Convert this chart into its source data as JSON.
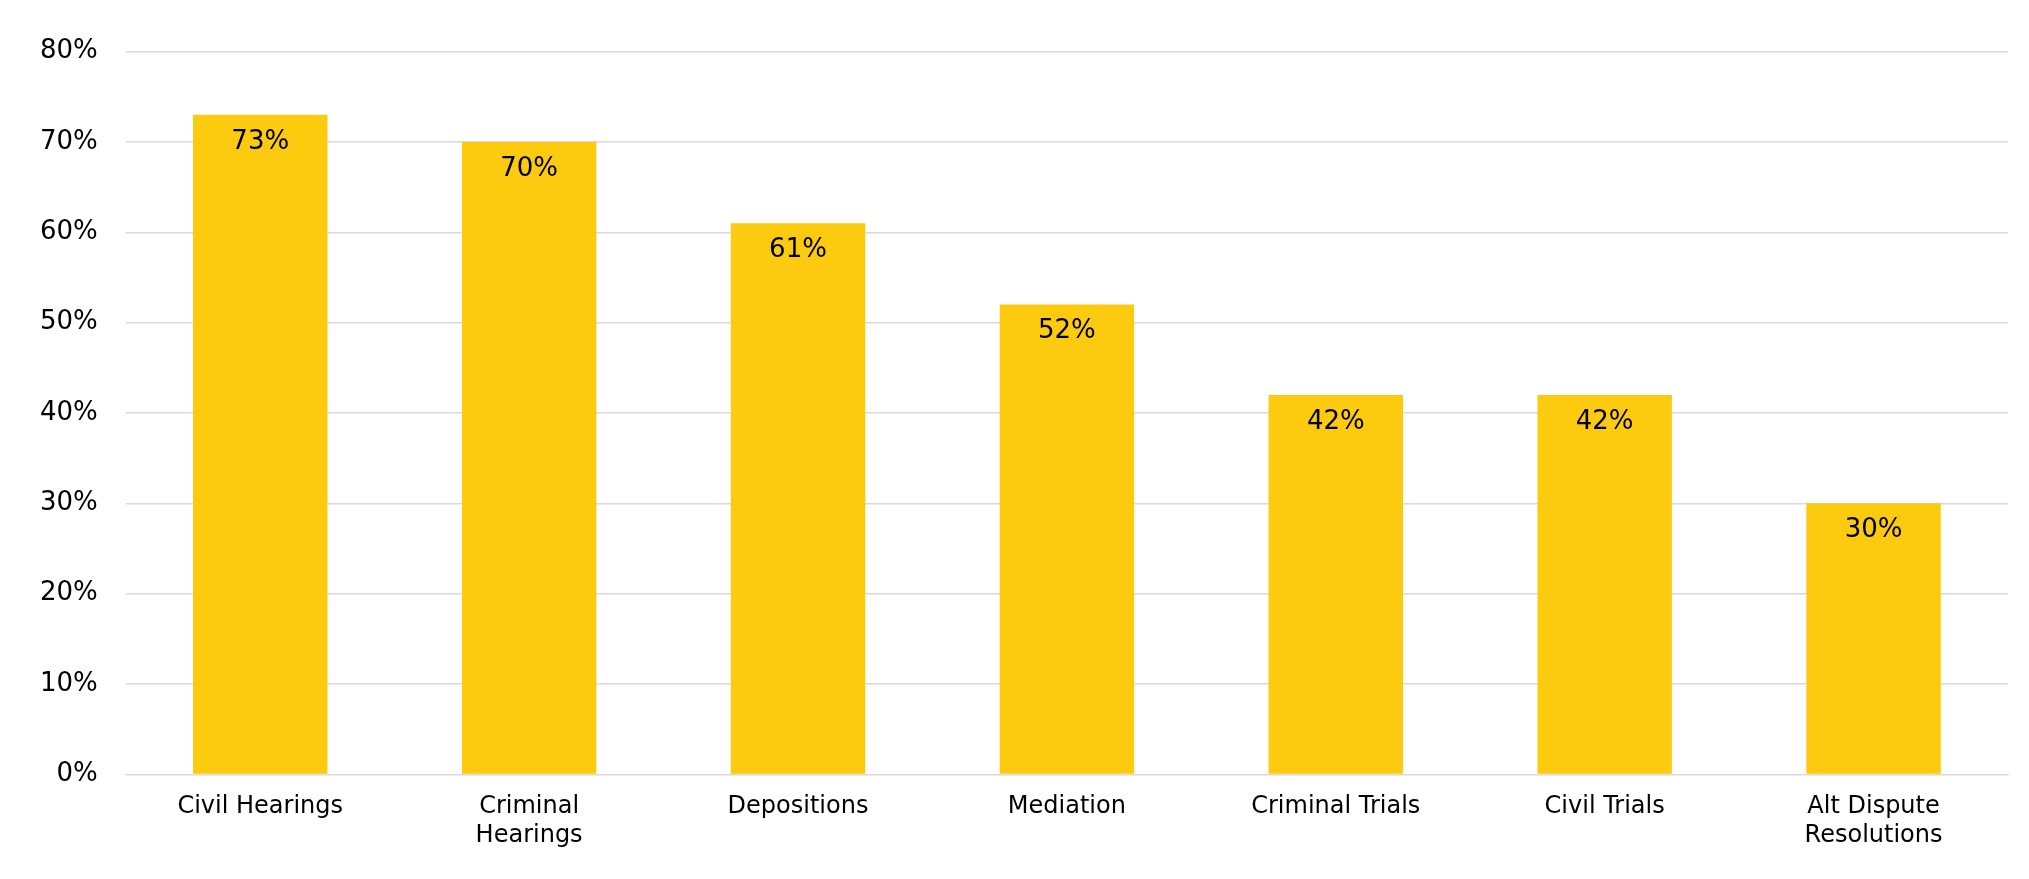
{
  "chart_data": {
    "type": "bar",
    "categories": [
      "Civil Hearings",
      "Criminal Hearings",
      "Depositions",
      "Mediation",
      "Criminal Trials",
      "Civil Trials",
      "Alt Dispute Resolutions"
    ],
    "values": [
      73,
      70,
      61,
      52,
      42,
      42,
      30
    ],
    "value_labels": [
      "73%",
      "70%",
      "61%",
      "52%",
      "42%",
      "42%",
      "30%"
    ],
    "color": "#fcca0f",
    "ylim": [
      0,
      80
    ],
    "yticks": [
      {
        "value": 0,
        "label": "0%"
      },
      {
        "value": 10,
        "label": "10%"
      },
      {
        "value": 20,
        "label": "20%"
      },
      {
        "value": 30,
        "label": "30%"
      },
      {
        "value": 40,
        "label": "40%"
      },
      {
        "value": 50,
        "label": "50%"
      },
      {
        "value": 60,
        "label": "60%"
      },
      {
        "value": 70,
        "label": "70%"
      },
      {
        "value": 80,
        "label": "80%"
      }
    ],
    "grid": "y",
    "legend": false
  }
}
